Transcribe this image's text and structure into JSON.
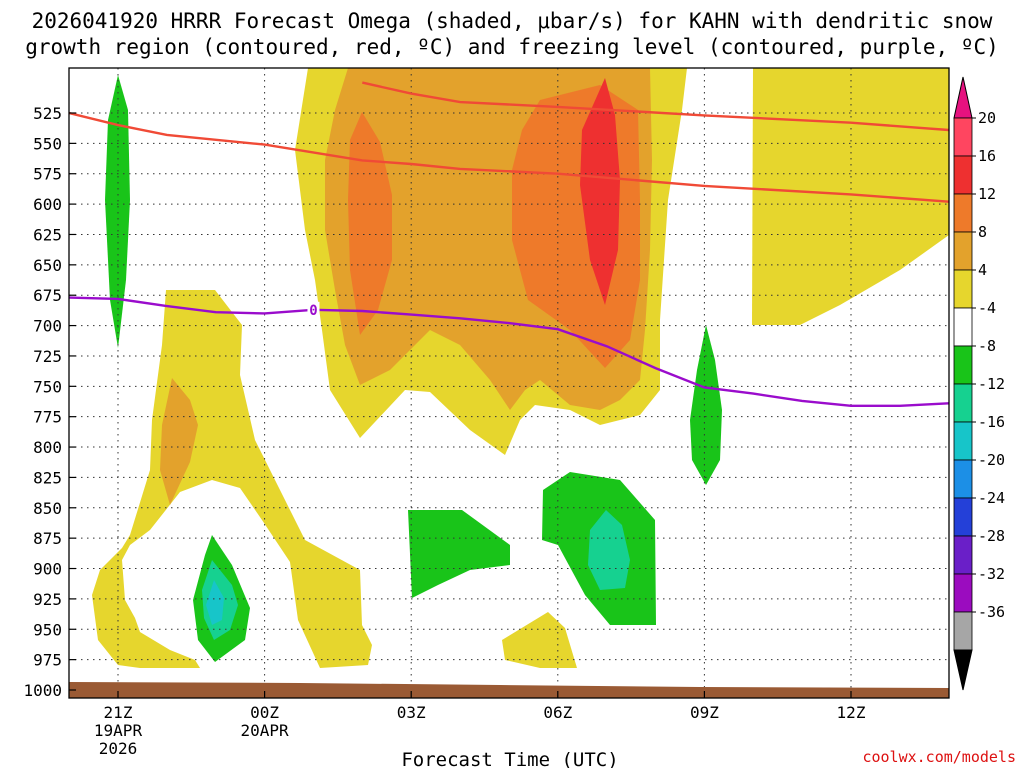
{
  "chart_data": {
    "type": "contour",
    "title_line1": "2026041920 HRRR Forecast Omega (shaded, μbar/s) for KAHN with dendritic snow",
    "title_line2": "growth region (contoured, red, ºC) and freezing level (contoured, purple, ºC)",
    "xlabel": "Forecast Time (UTC)",
    "credit": "coolwx.com/models",
    "x_range_hours": [
      -1,
      17
    ],
    "y_range_hpa": [
      1005,
      500
    ],
    "x_ticks": [
      {
        "hour": 0,
        "lines": [
          "21Z",
          "19APR",
          "2026"
        ]
      },
      {
        "hour": 3,
        "lines": [
          "00Z",
          "20APR"
        ]
      },
      {
        "hour": 6,
        "lines": [
          "03Z"
        ]
      },
      {
        "hour": 9,
        "lines": [
          "06Z"
        ]
      },
      {
        "hour": 12,
        "lines": [
          "09Z"
        ]
      },
      {
        "hour": 15,
        "lines": [
          "12Z"
        ]
      }
    ],
    "y_ticks": [
      "525",
      "550",
      "575",
      "600",
      "625",
      "650",
      "675",
      "700",
      "725",
      "750",
      "775",
      "800",
      "825",
      "850",
      "875",
      "900",
      "925",
      "950",
      "975",
      "1000"
    ],
    "colorbar": {
      "labels": [
        "20",
        "16",
        "12",
        "8",
        "4",
        "-4",
        "-8",
        "-12",
        "-16",
        "-20",
        "-24",
        "-28",
        "-32",
        "-36"
      ],
      "colors": [
        "#ff4560",
        "#ee3030",
        "#ee7a2a",
        "#e3a22c",
        "#e6d62d",
        "#ffffff",
        "#19c419",
        "#16d190",
        "#17c5c9",
        "#1c8fe6",
        "#2440d8",
        "#6a1fc8",
        "#9b0cbf",
        "#a6a6a6"
      ],
      "upper_arrow_color": "#e6127f",
      "lower_arrow_color": "#000000"
    },
    "fill_levels": [
      {
        "name": "omega 4 to 8",
        "color": "#e6d62d"
      },
      {
        "name": "omega 8 to 12",
        "color": "#e3a22c"
      },
      {
        "name": "omega 12 to 16",
        "color": "#ee7a2a"
      },
      {
        "name": "omega 16 to 20",
        "color": "#ee3030"
      },
      {
        "name": "omega -8 to -4",
        "color": "#19c419"
      },
      {
        "name": "omega -12 to -8",
        "color": "#16d190"
      },
      {
        "name": "omega -16 to -12",
        "color": "#17c5c9"
      }
    ],
    "dendritic_zone_contours": [
      {
        "level": "-12",
        "color": "#f04a36",
        "points": [
          [
            -1,
            525
          ],
          [
            0,
            535
          ],
          [
            1,
            543
          ],
          [
            3,
            551
          ],
          [
            5,
            564
          ],
          [
            6,
            567
          ],
          [
            7,
            571
          ],
          [
            9,
            575
          ],
          [
            12,
            585
          ],
          [
            15,
            592
          ],
          [
            17,
            598
          ]
        ]
      },
      {
        "level": "-18",
        "color": "#f04a36",
        "points": [
          [
            5,
            500
          ],
          [
            6,
            509
          ],
          [
            7,
            516
          ],
          [
            9,
            520
          ],
          [
            12,
            527
          ],
          [
            15,
            533
          ],
          [
            17,
            539
          ]
        ]
      }
    ],
    "freezing_level": {
      "level": "0",
      "label": "0",
      "color": "#9a0ccc",
      "points": [
        [
          -1,
          677
        ],
        [
          0,
          678
        ],
        [
          1,
          684
        ],
        [
          2,
          689
        ],
        [
          3,
          690
        ],
        [
          4,
          687
        ],
        [
          5,
          688
        ],
        [
          6,
          691
        ],
        [
          7,
          694
        ],
        [
          8,
          698
        ],
        [
          9,
          703
        ],
        [
          10,
          717
        ],
        [
          11,
          735
        ],
        [
          12,
          751
        ],
        [
          13,
          756
        ],
        [
          14,
          762
        ],
        [
          15,
          766
        ],
        [
          16,
          766
        ],
        [
          17,
          764
        ]
      ]
    },
    "terrain_color": "#9a5a34"
  }
}
